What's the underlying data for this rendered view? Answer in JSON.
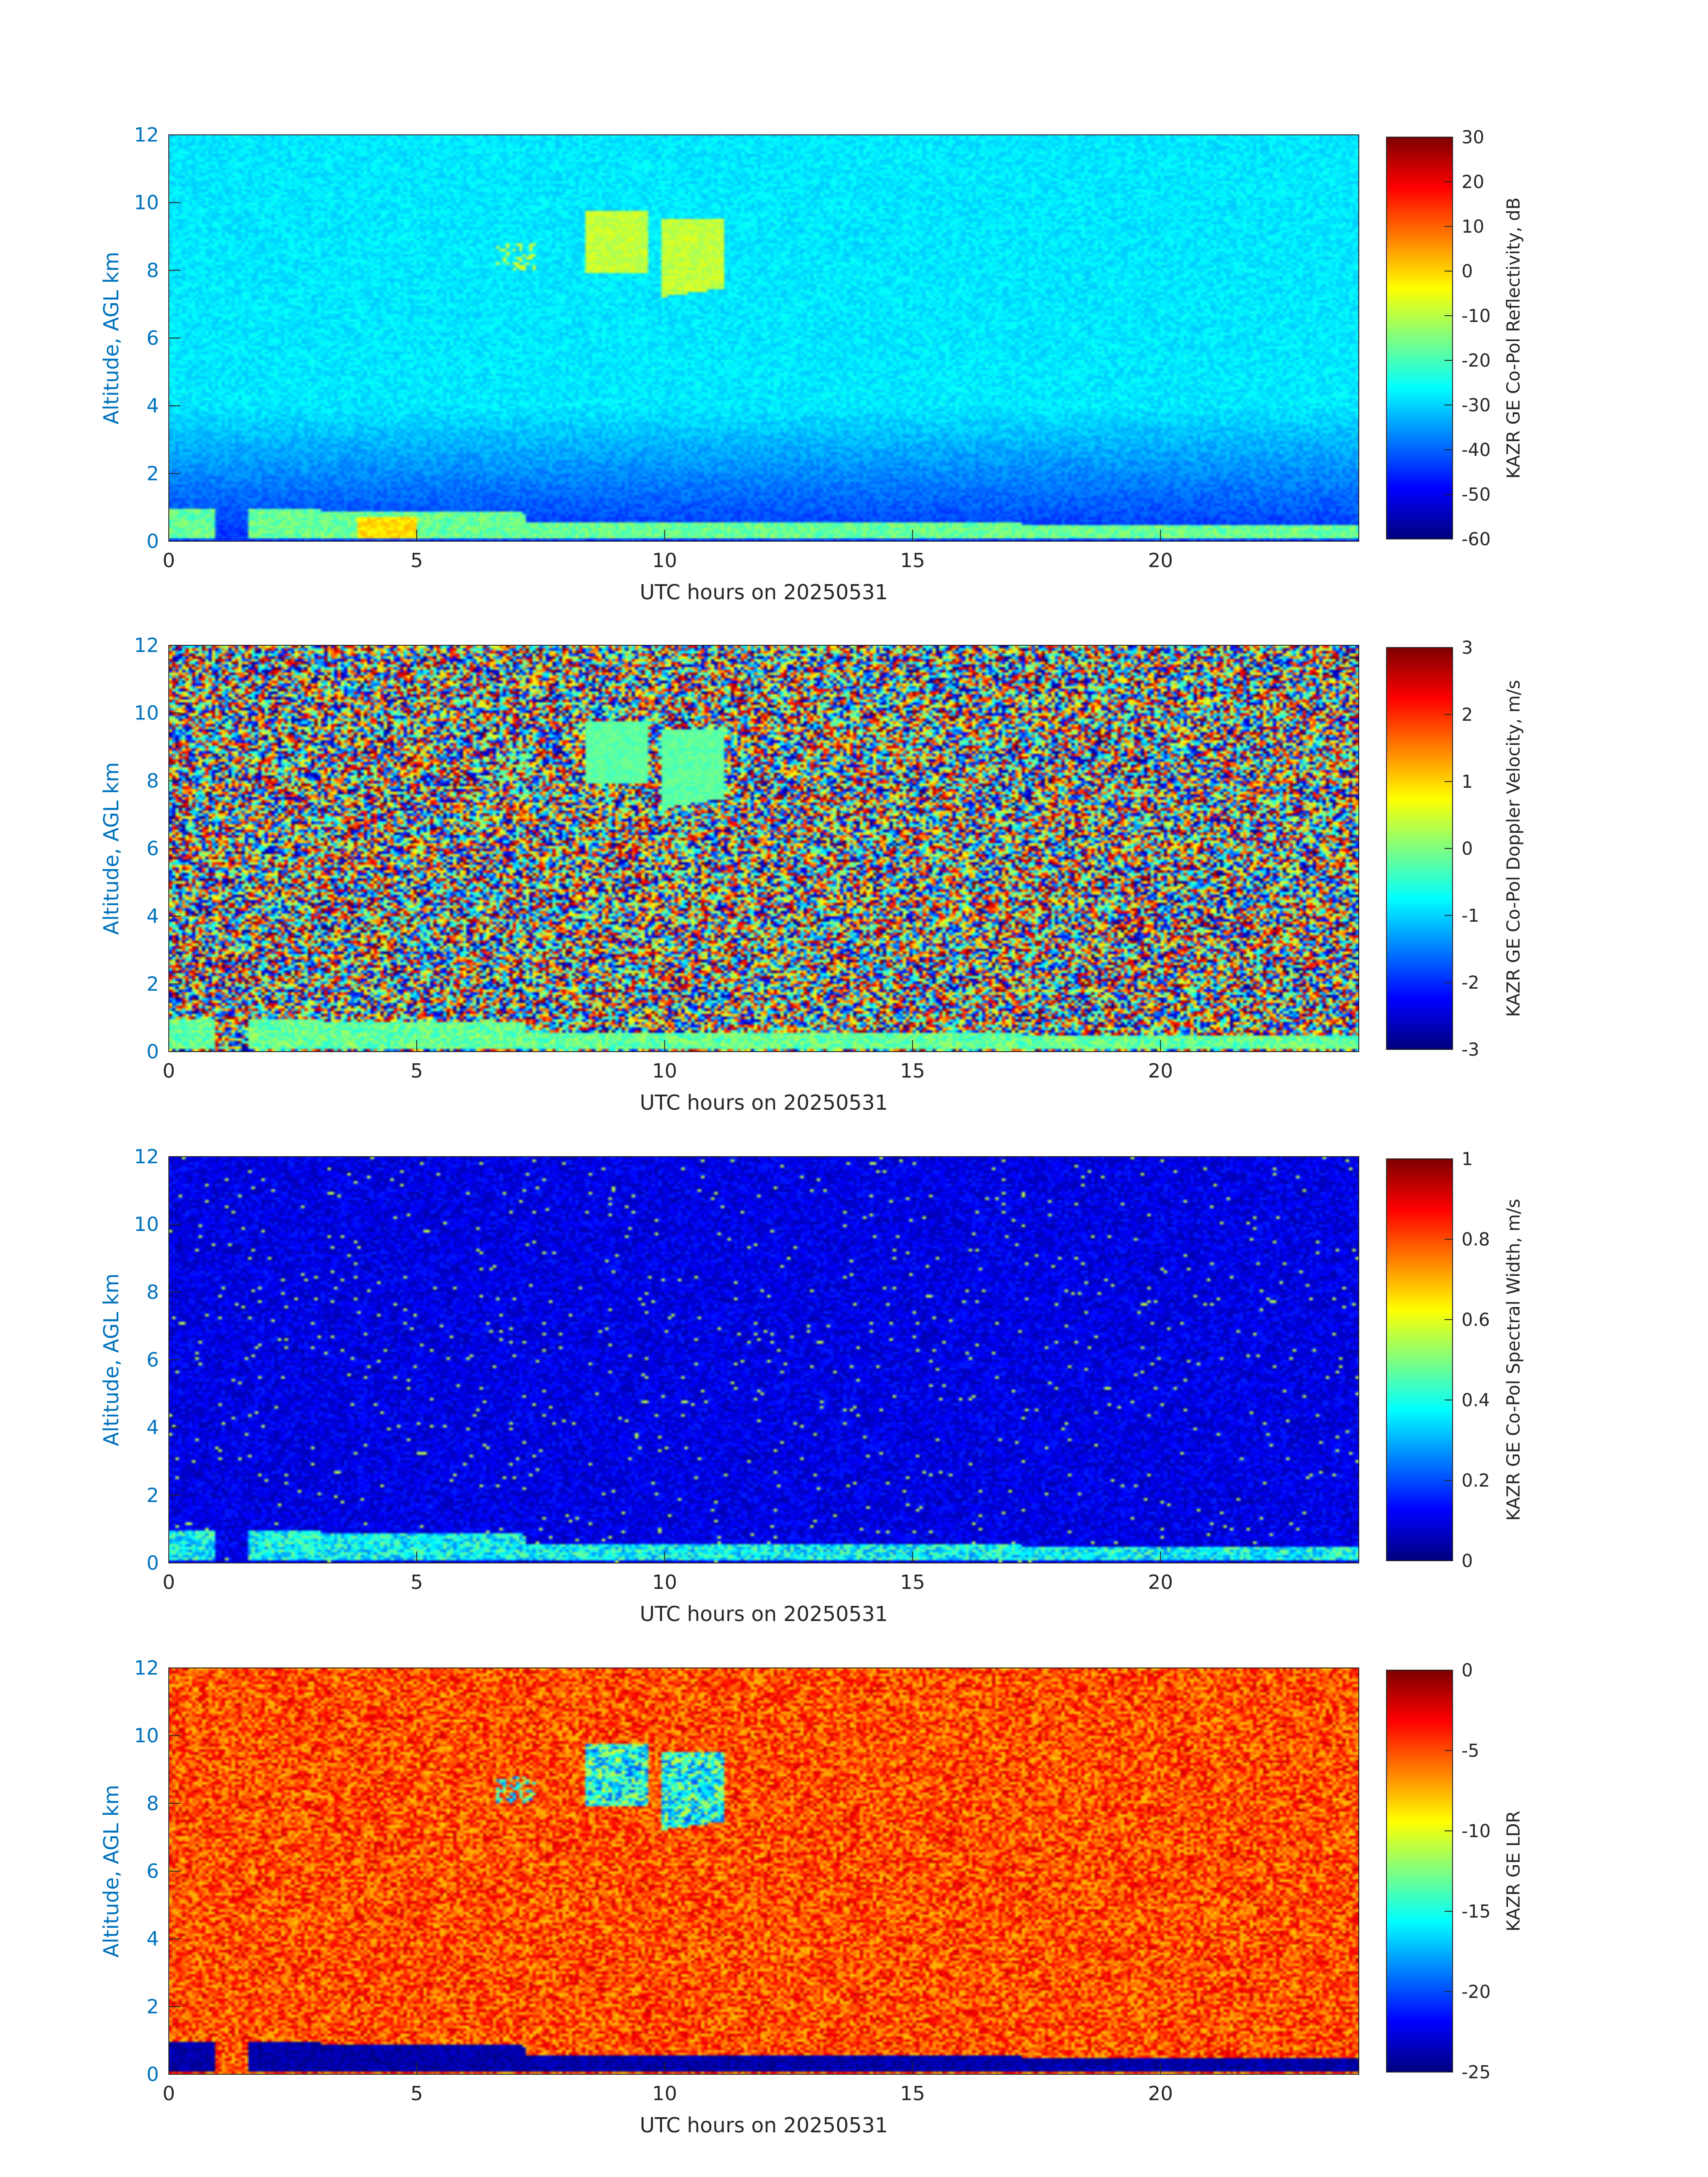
{
  "chart_data": [
    {
      "type": "heatmap",
      "variable": "reflectivity",
      "xlabel": "UTC hours on 20250531",
      "ylabel": "Altitude, AGL km",
      "colorbar_label": "KAZR GE Co-Pol Reflectivity, dB",
      "xlim": [
        0,
        24
      ],
      "ylim": [
        0,
        12
      ],
      "xticks": [
        0,
        5,
        10,
        15,
        20
      ],
      "yticks": [
        0,
        2,
        4,
        6,
        8,
        10,
        12
      ],
      "clim": [
        -60,
        30
      ],
      "cticks": [
        30,
        20,
        10,
        0,
        -10,
        -20,
        -30,
        -40,
        -50,
        -60
      ],
      "colormap": "jet"
    },
    {
      "type": "heatmap",
      "variable": "doppler_velocity",
      "xlabel": "UTC hours on 20250531",
      "ylabel": "Altitude, AGL km",
      "colorbar_label": "KAZR GE Co-Pol Doppler Velocity, m/s",
      "xlim": [
        0,
        24
      ],
      "ylim": [
        0,
        12
      ],
      "xticks": [
        0,
        5,
        10,
        15,
        20
      ],
      "yticks": [
        0,
        2,
        4,
        6,
        8,
        10,
        12
      ],
      "clim": [
        -3,
        3
      ],
      "cticks": [
        3,
        2,
        1,
        0,
        -1,
        -2,
        -3
      ],
      "colormap": "jet"
    },
    {
      "type": "heatmap",
      "variable": "spectral_width",
      "xlabel": "UTC hours on 20250531",
      "ylabel": "Altitude, AGL km",
      "colorbar_label": "KAZR GE Co-Pol Spectral Width, m/s",
      "xlim": [
        0,
        24
      ],
      "ylim": [
        0,
        12
      ],
      "xticks": [
        0,
        5,
        10,
        15,
        20
      ],
      "yticks": [
        0,
        2,
        4,
        6,
        8,
        10,
        12
      ],
      "clim": [
        0,
        1
      ],
      "cticks": [
        1,
        0.8,
        0.6,
        0.4,
        0.2,
        0
      ],
      "colormap": "jet"
    },
    {
      "type": "heatmap",
      "variable": "ldr",
      "xlabel": "UTC hours on 20250531",
      "ylabel": "Altitude, AGL km",
      "colorbar_label": "KAZR GE LDR",
      "xlim": [
        0,
        24
      ],
      "ylim": [
        0,
        12
      ],
      "xticks": [
        0,
        5,
        10,
        15,
        20
      ],
      "yticks": [
        0,
        2,
        4,
        6,
        8,
        10,
        12
      ],
      "clim": [
        -25,
        0
      ],
      "cticks": [
        0,
        -5,
        -10,
        -15,
        -20,
        -25
      ],
      "colormap": "jet"
    }
  ],
  "colors": {
    "ytick_color": "#0072BD",
    "text_color": "#262626",
    "axis_color": "#262626"
  }
}
